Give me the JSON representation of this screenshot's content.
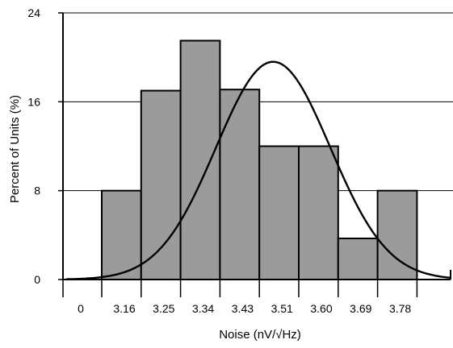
{
  "chart_data": {
    "type": "bar",
    "xlabel": "Noise (nV/√Hz)",
    "ylabel": "Percent of Units (%)",
    "ylim": [
      0,
      24
    ],
    "yticks": [
      "0",
      "8",
      "16",
      "24"
    ],
    "categories": [
      "3.16",
      "3.25",
      "3.34",
      "3.43",
      "3.51",
      "3.60",
      "3.69",
      "3.78"
    ],
    "x_tick_labels": [
      "0",
      "3.16",
      "3.25",
      "3.34",
      "3.43",
      "3.51",
      "3.60",
      "3.69",
      "3.78"
    ],
    "values": [
      8.0,
      17.0,
      21.5,
      17.1,
      12.0,
      12.0,
      3.7,
      8.0
    ],
    "fitted_curve": {
      "type": "normal",
      "peak_percent": 19.6,
      "mean_bin_position": 4.35,
      "sigma_bins": 1.45
    },
    "grid": {
      "horizontal": true,
      "vertical": false
    },
    "colors": {
      "bar_fill": "#9b9b9b",
      "bar_stroke": "#000000",
      "curve": "#000000",
      "grid": "#000000"
    }
  }
}
